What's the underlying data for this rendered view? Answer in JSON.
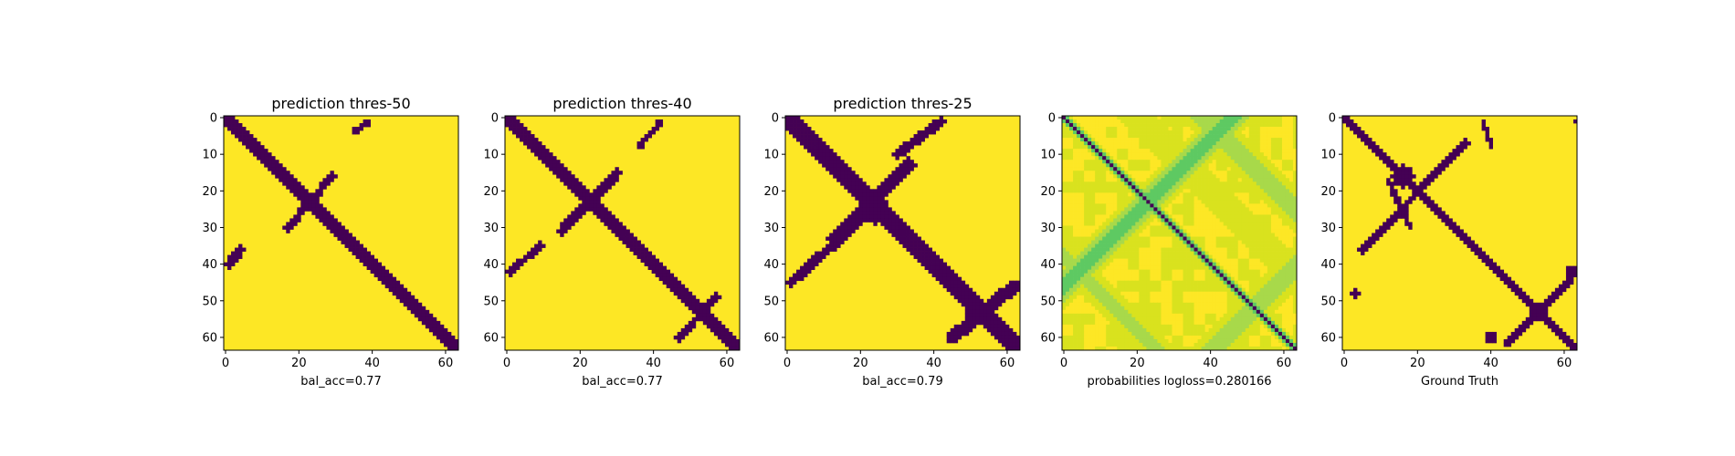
{
  "colors": {
    "purple": "#440154",
    "yellow": "#fde725",
    "viridis": [
      "#440154",
      "#3b528b",
      "#21918c",
      "#5ec962",
      "#a8d94a",
      "#d9e21e",
      "#fde725"
    ]
  },
  "chart_data": [
    {
      "type": "heatmap",
      "title": "prediction thres-50",
      "xlabel": "bal_acc=0.77",
      "xticks": [
        0,
        20,
        40,
        60
      ],
      "yticks": [
        0,
        10,
        20,
        30,
        40,
        50,
        60
      ],
      "size": 64,
      "features": [
        {
          "kind": "diag",
          "from": [
            0,
            0
          ],
          "to": [
            63,
            63
          ],
          "width": 1.6
        },
        {
          "kind": "line",
          "from": [
            17,
            30
          ],
          "to": [
            29,
            16
          ],
          "width": 1.0
        },
        {
          "kind": "line",
          "from": [
            1,
            40
          ],
          "to": [
            4,
            36
          ],
          "width": 1.2
        },
        {
          "kind": "line",
          "from": [
            35,
            4
          ],
          "to": [
            39,
            1
          ],
          "width": 0.9
        },
        {
          "kind": "blob",
          "center": [
            24,
            22
          ],
          "radius": 1.8
        }
      ]
    },
    {
      "type": "heatmap",
      "title": "prediction thres-40",
      "xlabel": "bal_acc=0.77",
      "xticks": [
        0,
        20,
        40,
        60
      ],
      "yticks": [
        0,
        10,
        20,
        30,
        40,
        50,
        60
      ],
      "size": 64,
      "features": [
        {
          "kind": "diag",
          "from": [
            0,
            0
          ],
          "to": [
            63,
            63
          ],
          "width": 1.8
        },
        {
          "kind": "line",
          "from": [
            15,
            31
          ],
          "to": [
            30,
            15
          ],
          "width": 1.4
        },
        {
          "kind": "line",
          "from": [
            1,
            42
          ],
          "to": [
            9,
            35
          ],
          "width": 1.0
        },
        {
          "kind": "line",
          "from": [
            36,
            8
          ],
          "to": [
            42,
            1
          ],
          "width": 0.8
        },
        {
          "kind": "line",
          "from": [
            47,
            60
          ],
          "to": [
            57,
            49
          ],
          "width": 1.0
        },
        {
          "kind": "blob",
          "center": [
            23,
            23
          ],
          "radius": 2.8
        },
        {
          "kind": "blob",
          "center": [
            53,
            53
          ],
          "radius": 2.0
        }
      ]
    },
    {
      "type": "heatmap",
      "title": "prediction thres-25",
      "xlabel": "bal_acc=0.79",
      "xticks": [
        0,
        20,
        40,
        60
      ],
      "yticks": [
        0,
        10,
        20,
        30,
        40,
        50,
        60
      ],
      "size": 64,
      "features": [
        {
          "kind": "diag",
          "from": [
            0,
            0
          ],
          "to": [
            63,
            63
          ],
          "width": 2.2
        },
        {
          "kind": "line",
          "from": [
            13,
            33
          ],
          "to": [
            33,
            13
          ],
          "width": 2.0
        },
        {
          "kind": "line",
          "from": [
            1,
            45
          ],
          "to": [
            20,
            28
          ],
          "width": 1.3
        },
        {
          "kind": "line",
          "from": [
            30,
            10
          ],
          "to": [
            42,
            1
          ],
          "width": 1.3
        },
        {
          "kind": "line",
          "from": [
            45,
            60
          ],
          "to": [
            62,
            46
          ],
          "width": 1.8
        },
        {
          "kind": "blob",
          "center": [
            24,
            25
          ],
          "radius": 4.0
        },
        {
          "kind": "blob",
          "center": [
            52,
            53
          ],
          "radius": 3.2
        }
      ]
    },
    {
      "type": "heatmap",
      "title": "",
      "xlabel": "probabilities logloss=0.280166",
      "xticks": [
        0,
        20,
        40,
        60
      ],
      "yticks": [
        0,
        10,
        20,
        30,
        40,
        50,
        60
      ],
      "size": 64,
      "features": []
    },
    {
      "type": "heatmap",
      "title": "",
      "xlabel": "Ground Truth",
      "xticks": [
        0,
        20,
        40,
        60
      ],
      "yticks": [
        0,
        10,
        20,
        30,
        40,
        50,
        60
      ],
      "size": 64,
      "features": [
        {
          "kind": "diag",
          "from": [
            0,
            0
          ],
          "to": [
            63,
            63
          ],
          "width": 1.2
        },
        {
          "kind": "line",
          "from": [
            5,
            36
          ],
          "to": [
            33,
            7
          ],
          "width": 1.0
        },
        {
          "kind": "line",
          "from": [
            44,
            62
          ],
          "to": [
            62,
            44
          ],
          "width": 0.9
        },
        {
          "kind": "line",
          "from": [
            38,
            1
          ],
          "to": [
            40,
            8
          ],
          "width": 0.6
        },
        {
          "kind": "line",
          "from": [
            12,
            17
          ],
          "to": [
            18,
            30
          ],
          "width": 0.8
        },
        {
          "kind": "blob",
          "center": [
            16,
            16
          ],
          "radius": 3.0
        },
        {
          "kind": "blob",
          "center": [
            53,
            53
          ],
          "radius": 2.5
        },
        {
          "kind": "blob",
          "center": [
            62,
            42
          ],
          "radius": 1.5
        },
        {
          "kind": "blob",
          "center": [
            40,
            60
          ],
          "radius": 1.5
        },
        {
          "kind": "blob",
          "center": [
            3,
            48
          ],
          "radius": 1.0
        },
        {
          "kind": "blob",
          "center": [
            63,
            1
          ],
          "radius": 0.8
        }
      ]
    }
  ]
}
